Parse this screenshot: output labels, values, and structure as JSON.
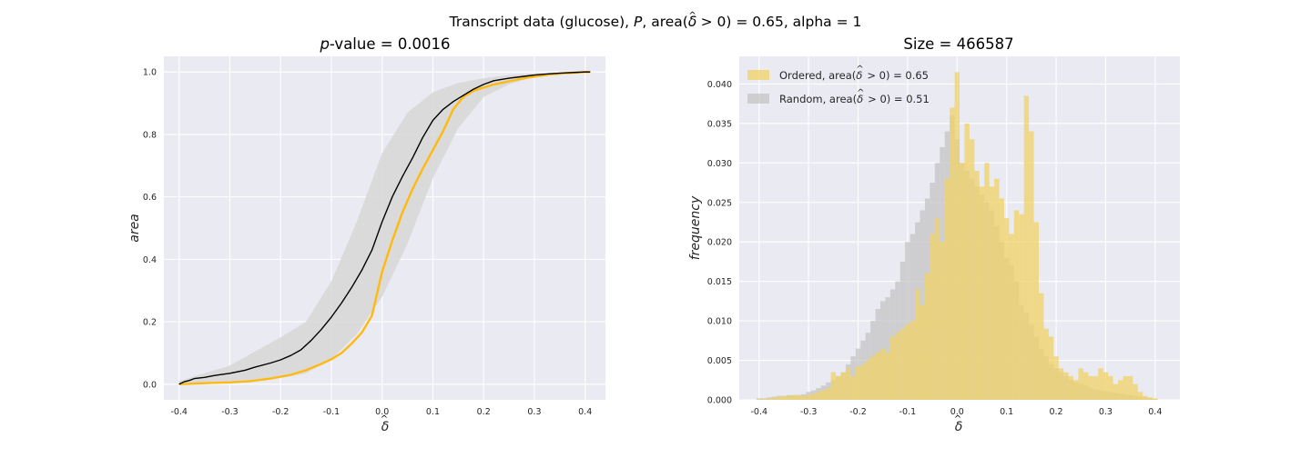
{
  "figure": {
    "suptitle": {
      "pre": "Transcript data (glucose), ",
      "P": "P",
      "mid": ", area(",
      "delta": "δ",
      "hat": "^",
      "post": " > 0) = 0.65, alpha = 1"
    }
  },
  "colors": {
    "background": "#eaeaf2",
    "grid": "#ffffff",
    "ordered": "#ffb90f",
    "random": "#000000",
    "band": "#d8d8d8",
    "ordered_hist": "#f0d264",
    "random_hist": "#c4c4c4"
  },
  "chart_data": [
    {
      "type": "line",
      "title": {
        "italic": "p",
        "rest": "-value = 0.0016"
      },
      "xlabel": "δ",
      "xlabel_hat": "^",
      "ylabel": "area",
      "xlim": [
        -0.43,
        0.44
      ],
      "ylim": [
        -0.05,
        1.05
      ],
      "xticks": [
        -0.4,
        -0.3,
        -0.2,
        -0.1,
        0.0,
        0.1,
        0.2,
        0.3,
        0.4
      ],
      "xtick_labels": [
        "-0.4",
        "-0.3",
        "-0.2",
        "-0.1",
        "0.0",
        "0.1",
        "0.2",
        "0.3",
        "0.4"
      ],
      "yticks": [
        0.0,
        0.2,
        0.4,
        0.6,
        0.8,
        1.0
      ],
      "ytick_labels": [
        "0.0",
        "0.2",
        "0.4",
        "0.6",
        "0.8",
        "1.0"
      ],
      "grid": true,
      "band": {
        "x": [
          -0.4,
          -0.35,
          -0.3,
          -0.25,
          -0.2,
          -0.15,
          -0.1,
          -0.05,
          0.0,
          0.05,
          0.1,
          0.15,
          0.2,
          0.25,
          0.3,
          0.35,
          0.4
        ],
        "upper": [
          0.01,
          0.035,
          0.06,
          0.105,
          0.15,
          0.2,
          0.33,
          0.52,
          0.74,
          0.87,
          0.935,
          0.965,
          0.98,
          0.99,
          0.995,
          0.998,
          1.0
        ],
        "lower": [
          0.0,
          0.0,
          0.005,
          0.01,
          0.02,
          0.035,
          0.08,
          0.16,
          0.28,
          0.45,
          0.66,
          0.82,
          0.92,
          0.96,
          0.985,
          0.995,
          1.0
        ]
      },
      "series": [
        {
          "name": "",
          "color": "#000000",
          "x": [
            -0.4,
            -0.39,
            -0.38,
            -0.37,
            -0.35,
            -0.33,
            -0.3,
            -0.27,
            -0.25,
            -0.22,
            -0.2,
            -0.18,
            -0.16,
            -0.14,
            -0.12,
            -0.1,
            -0.08,
            -0.06,
            -0.04,
            -0.02,
            0.0,
            0.02,
            0.04,
            0.06,
            0.08,
            0.1,
            0.12,
            0.14,
            0.16,
            0.18,
            0.2,
            0.22,
            0.25,
            0.28,
            0.3,
            0.33,
            0.36,
            0.4,
            0.41
          ],
          "y": [
            0.0,
            0.008,
            0.012,
            0.018,
            0.022,
            0.028,
            0.035,
            0.045,
            0.055,
            0.068,
            0.078,
            0.092,
            0.11,
            0.14,
            0.175,
            0.215,
            0.26,
            0.31,
            0.365,
            0.43,
            0.52,
            0.6,
            0.665,
            0.725,
            0.79,
            0.845,
            0.88,
            0.905,
            0.925,
            0.945,
            0.96,
            0.972,
            0.98,
            0.986,
            0.99,
            0.994,
            0.997,
            1.0,
            1.0
          ]
        },
        {
          "name": "",
          "color": "#ffb90f",
          "x": [
            -0.4,
            -0.37,
            -0.34,
            -0.3,
            -0.26,
            -0.22,
            -0.18,
            -0.15,
            -0.12,
            -0.1,
            -0.08,
            -0.06,
            -0.04,
            -0.02,
            0.0,
            0.02,
            0.04,
            0.06,
            0.08,
            0.1,
            0.12,
            0.14,
            0.16,
            0.18,
            0.2,
            0.22,
            0.25,
            0.28,
            0.3,
            0.33,
            0.36,
            0.4,
            0.41
          ],
          "y": [
            0.0,
            0.002,
            0.004,
            0.006,
            0.01,
            0.018,
            0.03,
            0.045,
            0.065,
            0.08,
            0.1,
            0.13,
            0.165,
            0.22,
            0.36,
            0.46,
            0.55,
            0.625,
            0.69,
            0.75,
            0.81,
            0.88,
            0.92,
            0.94,
            0.95,
            0.96,
            0.97,
            0.98,
            0.985,
            0.992,
            0.996,
            1.0,
            1.0
          ]
        }
      ]
    },
    {
      "type": "bar",
      "title": "Size = 466587",
      "xlabel": "δ",
      "xlabel_hat": "^",
      "ylabel": "frequency",
      "xlim": [
        -0.44,
        0.45
      ],
      "ylim": [
        0.0,
        0.0435
      ],
      "xticks": [
        -0.4,
        -0.3,
        -0.2,
        -0.1,
        0.0,
        0.1,
        0.2,
        0.3,
        0.4
      ],
      "xtick_labels": [
        "-0.4",
        "-0.3",
        "-0.2",
        "-0.1",
        "0.0",
        "0.1",
        "0.2",
        "0.3",
        "0.4"
      ],
      "yticks": [
        0.0,
        0.005,
        0.01,
        0.015,
        0.02,
        0.025,
        0.03,
        0.035,
        0.04
      ],
      "ytick_labels": [
        "0.000",
        "0.005",
        "0.010",
        "0.015",
        "0.020",
        "0.025",
        "0.030",
        "0.035",
        "0.040"
      ],
      "grid": true,
      "legend": {
        "position": "top-left",
        "entries": [
          {
            "label_pre": "Ordered, area(",
            "delta": "δ",
            "hat": "^",
            "label_post": " > 0) = 0.65",
            "color": "#f0d264"
          },
          {
            "label_pre": "Random, area(",
            "delta": "δ",
            "hat": "^",
            "label_post": " > 0) = 0.51",
            "color": "#c4c4c4"
          }
        ]
      },
      "bin_width": 0.01,
      "series": [
        {
          "name": "Ordered",
          "color": "#f0d264",
          "x": [
            -0.4,
            -0.39,
            -0.38,
            -0.37,
            -0.36,
            -0.35,
            -0.34,
            -0.33,
            -0.32,
            -0.31,
            -0.3,
            -0.29,
            -0.28,
            -0.27,
            -0.26,
            -0.25,
            -0.24,
            -0.23,
            -0.22,
            -0.21,
            -0.2,
            -0.19,
            -0.18,
            -0.17,
            -0.16,
            -0.15,
            -0.14,
            -0.13,
            -0.12,
            -0.11,
            -0.1,
            -0.09,
            -0.08,
            -0.07,
            -0.06,
            -0.05,
            -0.04,
            -0.03,
            -0.02,
            -0.01,
            0.0,
            0.01,
            0.02,
            0.03,
            0.04,
            0.05,
            0.06,
            0.07,
            0.08,
            0.09,
            0.1,
            0.11,
            0.12,
            0.13,
            0.14,
            0.15,
            0.16,
            0.17,
            0.18,
            0.19,
            0.2,
            0.21,
            0.22,
            0.23,
            0.24,
            0.25,
            0.26,
            0.27,
            0.28,
            0.29,
            0.3,
            0.31,
            0.32,
            0.33,
            0.34,
            0.35,
            0.36,
            0.37,
            0.38,
            0.39,
            0.4
          ],
          "y": [
            0.0001,
            0.0001,
            0.0002,
            0.0003,
            0.0004,
            0.0005,
            0.0005,
            0.0006,
            0.0006,
            0.0005,
            0.0006,
            0.0008,
            0.001,
            0.0012,
            0.0015,
            0.0035,
            0.003,
            0.0035,
            0.004,
            0.003,
            0.0042,
            0.0045,
            0.005,
            0.0055,
            0.006,
            0.0065,
            0.006,
            0.008,
            0.0085,
            0.009,
            0.0095,
            0.01,
            0.014,
            0.012,
            0.016,
            0.021,
            0.023,
            0.02,
            0.028,
            0.037,
            0.0415,
            0.03,
            0.035,
            0.033,
            0.029,
            0.027,
            0.03,
            0.027,
            0.028,
            0.0255,
            0.023,
            0.021,
            0.024,
            0.0235,
            0.0385,
            0.034,
            0.0225,
            0.0135,
            0.009,
            0.008,
            0.0055,
            0.004,
            0.0035,
            0.003,
            0.0025,
            0.004,
            0.0035,
            0.003,
            0.003,
            0.004,
            0.0035,
            0.003,
            0.002,
            0.0025,
            0.003,
            0.003,
            0.002,
            0.001,
            0.0005,
            0.0003,
            0.0002
          ]
        },
        {
          "name": "Random",
          "color": "#c4c4c4",
          "x": [
            -0.4,
            -0.39,
            -0.38,
            -0.37,
            -0.36,
            -0.35,
            -0.34,
            -0.33,
            -0.32,
            -0.31,
            -0.3,
            -0.29,
            -0.28,
            -0.27,
            -0.26,
            -0.25,
            -0.24,
            -0.23,
            -0.22,
            -0.21,
            -0.2,
            -0.19,
            -0.18,
            -0.17,
            -0.16,
            -0.15,
            -0.14,
            -0.13,
            -0.12,
            -0.11,
            -0.1,
            -0.09,
            -0.08,
            -0.07,
            -0.06,
            -0.05,
            -0.04,
            -0.03,
            -0.02,
            -0.01,
            0.0,
            0.01,
            0.02,
            0.03,
            0.04,
            0.05,
            0.06,
            0.07,
            0.08,
            0.09,
            0.1,
            0.11,
            0.12,
            0.13,
            0.14,
            0.15,
            0.16,
            0.17,
            0.18,
            0.19,
            0.2,
            0.21,
            0.22,
            0.23,
            0.24,
            0.25,
            0.26,
            0.27,
            0.28,
            0.29,
            0.3,
            0.31,
            0.32,
            0.33,
            0.34,
            0.35,
            0.36,
            0.37,
            0.38,
            0.39,
            0.4
          ],
          "y": [
            0.0002,
            0.0002,
            0.0003,
            0.0004,
            0.0005,
            0.0005,
            0.0006,
            0.0006,
            0.0006,
            0.0007,
            0.001,
            0.0012,
            0.0015,
            0.0018,
            0.0022,
            0.0025,
            0.003,
            0.0035,
            0.0045,
            0.0055,
            0.0065,
            0.0075,
            0.0085,
            0.01,
            0.0115,
            0.0125,
            0.013,
            0.014,
            0.015,
            0.0175,
            0.02,
            0.021,
            0.0225,
            0.024,
            0.0255,
            0.0275,
            0.03,
            0.032,
            0.034,
            0.036,
            0.033,
            0.03,
            0.029,
            0.028,
            0.027,
            0.026,
            0.025,
            0.024,
            0.022,
            0.02,
            0.018,
            0.017,
            0.015,
            0.012,
            0.011,
            0.0095,
            0.008,
            0.0065,
            0.0055,
            0.0045,
            0.004,
            0.0035,
            0.003,
            0.0025,
            0.0022,
            0.002,
            0.0018,
            0.0015,
            0.0013,
            0.0012,
            0.0011,
            0.001,
            0.0009,
            0.0008,
            0.0007,
            0.0006,
            0.0005,
            0.0004,
            0.0003,
            0.0002,
            0.0001
          ]
        }
      ]
    }
  ]
}
